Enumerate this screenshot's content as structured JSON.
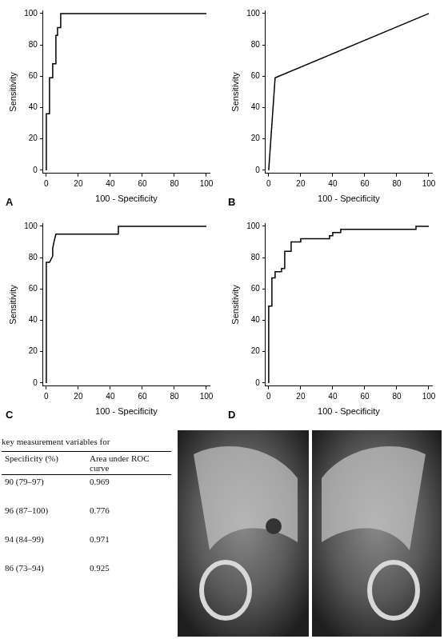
{
  "chart_data": [
    {
      "type": "line",
      "panel": "A",
      "x_label": "100 - Specificity",
      "y_label": "Sensitivity",
      "x": [
        0,
        0,
        2,
        2,
        4,
        4,
        6,
        6,
        7,
        7,
        9,
        9,
        100
      ],
      "values": [
        0,
        36,
        36,
        59,
        59,
        68,
        68,
        86,
        86,
        91,
        91,
        100,
        100
      ],
      "color": "#000000",
      "xlim": [
        -2,
        102
      ],
      "ylim": [
        -2,
        102
      ],
      "xticks": [
        0,
        20,
        40,
        60,
        80,
        100
      ],
      "yticks": [
        0,
        20,
        40,
        60,
        80,
        100
      ],
      "grid": false
    },
    {
      "type": "line",
      "panel": "B",
      "x_label": "100 - Specificity",
      "y_label": "Sensitivity",
      "x": [
        0,
        4,
        100
      ],
      "values": [
        0,
        59,
        100
      ],
      "color": "#000000",
      "xlim": [
        -2,
        102
      ],
      "ylim": [
        -2,
        102
      ],
      "xticks": [
        0,
        20,
        40,
        60,
        80,
        100
      ],
      "yticks": [
        0,
        20,
        40,
        60,
        80,
        100
      ],
      "grid": false
    },
    {
      "type": "line",
      "panel": "C",
      "x_label": "100 - Specificity",
      "y_label": "Sensitivity",
      "x": [
        0,
        0,
        2,
        4,
        4,
        5,
        6,
        45,
        45,
        100
      ],
      "values": [
        0,
        77,
        77,
        81,
        86,
        91,
        95,
        95,
        100,
        100
      ],
      "color": "#000000",
      "xlim": [
        -2,
        102
      ],
      "ylim": [
        -2,
        102
      ],
      "xticks": [
        0,
        20,
        40,
        60,
        80,
        100
      ],
      "yticks": [
        0,
        20,
        40,
        60,
        80,
        100
      ],
      "grid": false
    },
    {
      "type": "line",
      "panel": "D",
      "x_label": "100 - Specificity",
      "y_label": "Sensitivity",
      "x": [
        0,
        0,
        2,
        2,
        4,
        4,
        8,
        8,
        10,
        10,
        14,
        14,
        20,
        20,
        38,
        38,
        40,
        40,
        45,
        45,
        92,
        92,
        100
      ],
      "values": [
        0,
        49,
        49,
        67,
        67,
        71,
        71,
        73,
        73,
        84,
        84,
        90,
        90,
        92,
        92,
        94,
        94,
        96,
        96,
        98,
        98,
        100,
        100
      ],
      "color": "#000000",
      "xlim": [
        -2,
        102
      ],
      "ylim": [
        -2,
        102
      ],
      "xticks": [
        0,
        20,
        40,
        60,
        80,
        100
      ],
      "yticks": [
        0,
        20,
        40,
        60,
        80,
        100
      ],
      "grid": false
    }
  ],
  "table": {
    "caption": "key measurement variables for",
    "header": [
      "Specificity (%)",
      "Area under ROC curve"
    ],
    "rows": [
      [
        "90 (79–97)",
        0.969
      ],
      [
        "96 (87–100)",
        0.776
      ],
      [
        "94 (84–99)",
        0.971
      ],
      [
        "86 (73–94)",
        0.925
      ]
    ]
  }
}
